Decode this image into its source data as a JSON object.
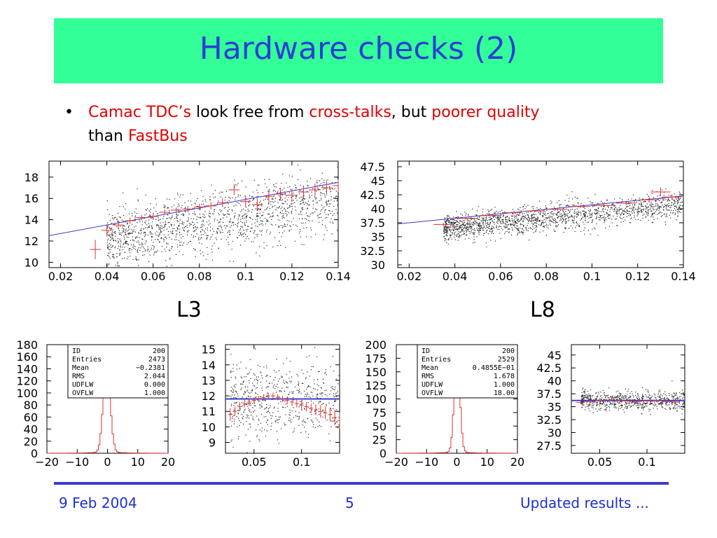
{
  "slide": {
    "title": "Hardware checks (2)",
    "bullet": {
      "symbol": "•",
      "part1": "Camac TDC’s",
      "part2": " look free from ",
      "part3": "cross-talks",
      "part4": ", but ",
      "part5": "poorer quality",
      "part6": " than ",
      "part7": "FastBus"
    },
    "label_left": "L3",
    "label_right": "L8",
    "footer": {
      "date": "9 Feb 2004",
      "page": "5",
      "right": "Updated results ..."
    }
  },
  "colors": {
    "title_bg": "#33ff99",
    "title_text": "#2a3fd4",
    "accent_red": "#e00000",
    "fit_line": "#3c3ccf",
    "scatter": "#222222",
    "profile": "#e03030",
    "footer": "#1f2fd0"
  },
  "chart_data": [
    {
      "id": "l3_scatter",
      "type": "scatter",
      "xlim": [
        0.015,
        0.14
      ],
      "ylim": [
        9.5,
        19.5
      ],
      "xticks": [
        "0.02",
        "0.04",
        "0.06",
        "0.08",
        "0.1",
        "0.12",
        "0.14"
      ],
      "xtick_values": [
        0.02,
        0.04,
        0.06,
        0.08,
        0.1,
        0.12,
        0.14
      ],
      "yticks": [
        "10",
        "12",
        "14",
        "16",
        "18"
      ],
      "ytick_values": [
        10,
        12,
        14,
        16,
        18
      ],
      "fit_line": {
        "x": [
          0.015,
          0.14
        ],
        "y": [
          12.5,
          17.5
        ]
      },
      "profile": {
        "x": [
          0.035,
          0.04,
          0.045,
          0.05,
          0.055,
          0.06,
          0.065,
          0.07,
          0.075,
          0.08,
          0.085,
          0.09,
          0.095,
          0.1,
          0.105,
          0.11,
          0.115,
          0.12,
          0.125,
          0.13,
          0.135,
          0.14
        ],
        "y": [
          11.2,
          13.0,
          13.5,
          13.9,
          14.2,
          14.3,
          14.7,
          14.9,
          15.0,
          15.2,
          15.3,
          15.6,
          16.8,
          15.7,
          15.4,
          16.2,
          16.4,
          16.3,
          16.6,
          16.8,
          17.0,
          17.2
        ],
        "err": [
          0.9,
          0.6,
          0.4,
          0.3,
          0.25,
          0.25,
          0.25,
          0.25,
          0.3,
          0.3,
          0.35,
          0.4,
          0.5,
          0.5,
          0.6,
          0.6,
          0.6,
          0.6,
          0.6,
          0.6,
          0.7,
          0.6
        ]
      },
      "scatter": {
        "count": 1500,
        "xrange": [
          0.04,
          0.14
        ],
        "spread": 1.4,
        "slope": 40,
        "intercept": 12.0
      }
    },
    {
      "id": "l8_scatter",
      "type": "scatter",
      "xlim": [
        0.015,
        0.14
      ],
      "ylim": [
        29.5,
        48.5
      ],
      "xticks": [
        "0.02",
        "0.04",
        "0.06",
        "0.08",
        "0.1",
        "0.12",
        "0.14"
      ],
      "xtick_values": [
        0.02,
        0.04,
        0.06,
        0.08,
        0.1,
        0.12,
        0.14
      ],
      "yticks": [
        "30",
        "32.5",
        "35",
        "37.5",
        "40",
        "42.5",
        "45",
        "47.5"
      ],
      "ytick_values": [
        30,
        32.5,
        35,
        37.5,
        40,
        42.5,
        45,
        47.5
      ],
      "fit_line": {
        "x": [
          0.015,
          0.14
        ],
        "y": [
          37.3,
          42.3
        ]
      },
      "profile": {
        "x": [
          0.035,
          0.045,
          0.055,
          0.065,
          0.075,
          0.085,
          0.095,
          0.105,
          0.115,
          0.125,
          0.13,
          0.135
        ],
        "y": [
          37.2,
          38.3,
          38.8,
          39.3,
          39.6,
          39.9,
          40.4,
          40.6,
          41.0,
          41.6,
          43.0,
          42.1
        ],
        "err": [
          0.3,
          0.2,
          0.2,
          0.2,
          0.2,
          0.25,
          0.3,
          0.3,
          0.4,
          0.5,
          0.8,
          0.5
        ]
      },
      "scatter": {
        "count": 1700,
        "xrange": [
          0.035,
          0.14
        ],
        "spread": 1.2,
        "slope": 40,
        "intercept": 36.6
      }
    },
    {
      "id": "l3_hist",
      "type": "bar",
      "xlim": [
        -20,
        20
      ],
      "ylim": [
        0,
        180
      ],
      "xticks": [
        "−20",
        "−10",
        "0",
        "10",
        "20"
      ],
      "xtick_values": [
        -20,
        -10,
        0,
        10,
        20
      ],
      "yticks": [
        "0",
        "20",
        "40",
        "60",
        "80",
        "100",
        "120",
        "140",
        "160",
        "180"
      ],
      "ytick_values": [
        0,
        20,
        40,
        60,
        80,
        100,
        120,
        140,
        160,
        180
      ],
      "peak": 150,
      "mean": -0.2381,
      "rms": 2.044,
      "stats": [
        {
          "label": "ID",
          "value": "200"
        },
        {
          "label": "Entries",
          "value": "2473"
        },
        {
          "label": "Mean",
          "value": "−0.2381"
        },
        {
          "label": "RMS",
          "value": "2.044"
        },
        {
          "label": "UDFLW",
          "value": "0.000"
        },
        {
          "label": "OVFLW",
          "value": "1.000"
        }
      ]
    },
    {
      "id": "l3_small",
      "type": "scatter",
      "xlim": [
        0.02,
        0.14
      ],
      "ylim": [
        8.3,
        15.3
      ],
      "xticks": [
        "0.05",
        "0.1"
      ],
      "xtick_values": [
        0.05,
        0.1
      ],
      "yticks": [
        "9",
        "10",
        "11",
        "12",
        "13",
        "14",
        "15"
      ],
      "ytick_values": [
        9,
        10,
        11,
        12,
        13,
        14,
        15
      ],
      "fit_line": {
        "x": [
          0.02,
          0.14
        ],
        "y": [
          11.8,
          11.8
        ]
      },
      "profile": {
        "x": [
          0.025,
          0.03,
          0.035,
          0.04,
          0.045,
          0.05,
          0.055,
          0.06,
          0.065,
          0.07,
          0.075,
          0.08,
          0.085,
          0.09,
          0.095,
          0.1,
          0.105,
          0.11,
          0.115,
          0.12,
          0.125,
          0.13,
          0.135,
          0.14
        ],
        "y": [
          10.8,
          11.0,
          11.3,
          11.5,
          11.6,
          11.7,
          11.8,
          11.9,
          12.0,
          12.0,
          11.9,
          11.8,
          11.7,
          11.6,
          11.5,
          11.4,
          11.3,
          11.2,
          11.1,
          11.0,
          10.9,
          10.8,
          10.6,
          10.4
        ],
        "err": [
          0.4,
          0.3,
          0.3,
          0.25,
          0.25,
          0.2,
          0.2,
          0.2,
          0.2,
          0.2,
          0.2,
          0.2,
          0.25,
          0.25,
          0.25,
          0.3,
          0.3,
          0.3,
          0.35,
          0.4,
          0.4,
          0.45,
          0.5,
          0.5
        ]
      },
      "scatter": {
        "count": 600,
        "xrange": [
          0.025,
          0.14
        ],
        "spread": 1.2,
        "slope": 0,
        "intercept": 11.8
      }
    },
    {
      "id": "l8_hist",
      "type": "bar",
      "xlim": [
        -20,
        20
      ],
      "ylim": [
        0,
        200
      ],
      "xticks": [
        "−20",
        "−10",
        "0",
        "10",
        "20"
      ],
      "xtick_values": [
        -20,
        -10,
        0,
        10,
        20
      ],
      "yticks": [
        "0",
        "25",
        "50",
        "75",
        "100",
        "125",
        "150",
        "175",
        "200"
      ],
      "ytick_values": [
        0,
        25,
        50,
        75,
        100,
        125,
        150,
        175,
        200
      ],
      "peak": 190,
      "mean": 0.04855,
      "rms": 1.678,
      "stats": [
        {
          "label": "ID",
          "value": "200"
        },
        {
          "label": "Entries",
          "value": "2529"
        },
        {
          "label": "Mean",
          "value": "0.4855E−01"
        },
        {
          "label": "RMS",
          "value": "1.678"
        },
        {
          "label": "UDFLW",
          "value": "1.000"
        },
        {
          "label": "OVFLW",
          "value": "18.00"
        }
      ]
    },
    {
      "id": "l8_small",
      "type": "scatter",
      "xlim": [
        0.02,
        0.14
      ],
      "ylim": [
        26,
        47
      ],
      "xticks": [
        "0.05",
        "0.1"
      ],
      "xtick_values": [
        0.05,
        0.1
      ],
      "yticks": [
        "27.5",
        "30",
        "32.5",
        "35",
        "37.5",
        "40",
        "42.5",
        "45"
      ],
      "ytick_values": [
        27.5,
        30,
        32.5,
        35,
        37.5,
        40,
        42.5,
        45
      ],
      "fit_line": {
        "x": [
          0.02,
          0.14
        ],
        "y": [
          36.2,
          36.2
        ]
      },
      "profile": {
        "x": [
          0.03,
          0.04,
          0.05,
          0.06,
          0.07,
          0.08,
          0.09,
          0.1,
          0.11,
          0.12,
          0.13
        ],
        "y": [
          35.8,
          36.0,
          36.2,
          36.3,
          36.2,
          36.1,
          36.0,
          36.1,
          36.2,
          36.0,
          35.9
        ],
        "err": [
          0.3,
          0.2,
          0.2,
          0.2,
          0.2,
          0.2,
          0.2,
          0.25,
          0.3,
          0.3,
          0.4
        ]
      },
      "scatter": {
        "count": 700,
        "xrange": [
          0.03,
          0.14
        ],
        "spread": 0.9,
        "slope": 0,
        "intercept": 36.2
      }
    }
  ]
}
